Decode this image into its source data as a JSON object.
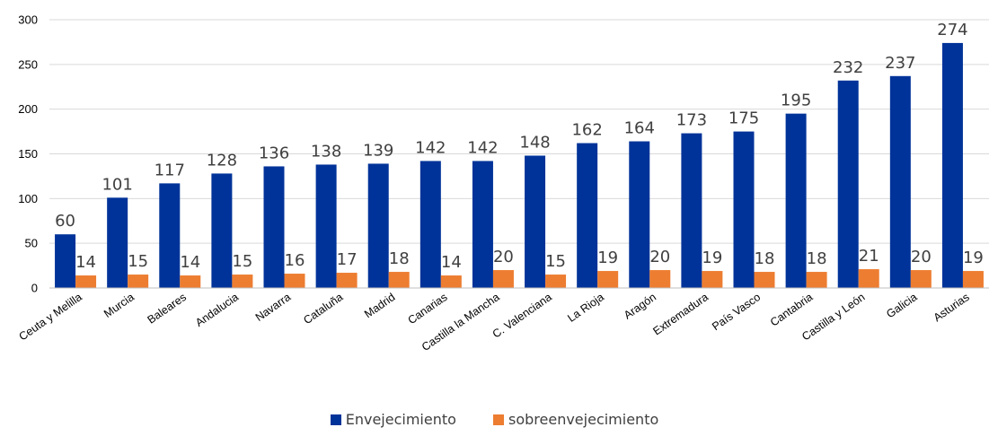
{
  "chart_data": {
    "type": "bar",
    "categories": [
      "Ceuta y Melilla",
      "Murcia",
      "Baleares",
      "Andalucia",
      "Navarra",
      "Cataluña",
      "Madrid",
      "Canarias",
      "Castilla la Mancha",
      "C. Valenciana",
      "La Rioja",
      "Aragón",
      "Extremadura",
      "País Vasco",
      "Cantabria",
      "Castilla y León",
      "Galicia",
      "Asturias"
    ],
    "series": [
      {
        "name": "Envejecimiento",
        "color": "#003399",
        "values": [
          60,
          101,
          117,
          128,
          136,
          138,
          139,
          142,
          142,
          148,
          162,
          164,
          173,
          175,
          195,
          232,
          237,
          274
        ]
      },
      {
        "name": "sobreenvejecimiento",
        "color": "#ED7D31",
        "values": [
          14,
          15,
          14,
          15,
          16,
          17,
          18,
          14,
          20,
          15,
          19,
          20,
          19,
          18,
          18,
          21,
          20,
          19
        ]
      }
    ],
    "ylim": [
      0,
      300
    ],
    "yticks": [
      "0",
      "50",
      "100",
      "150",
      "200",
      "250",
      "300"
    ],
    "grid": true,
    "legend_position": "bottom"
  }
}
